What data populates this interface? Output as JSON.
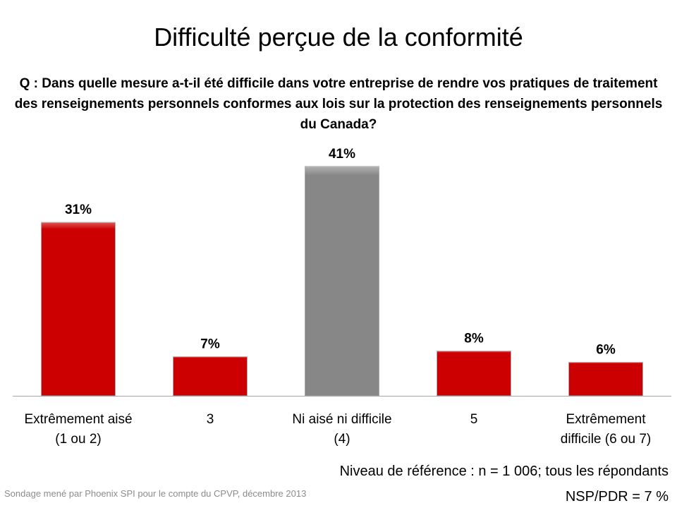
{
  "chart_data": {
    "type": "bar",
    "title": "Difficulté perçue de la conformité",
    "subtitle": "Q : Dans quelle mesure a-t-il été difficile dans votre entreprise de rendre vos pratiques de traitement des renseignements personnels conformes aux lois sur la protection des renseignements personnels du Canada?",
    "categories": [
      [
        "Extrêmement aisé",
        "(1 ou 2)"
      ],
      [
        "3"
      ],
      [
        "Ni aisé ni difficile",
        "(4)"
      ],
      [
        "5"
      ],
      [
        "Extrêmement",
        "difficile (6 ou 7)"
      ]
    ],
    "values": [
      31,
      7,
      41,
      8,
      6
    ],
    "data_labels": [
      "31%",
      "7%",
      "41%",
      "8%",
      "6%"
    ],
    "colors": [
      "#cc0000",
      "#cc0000",
      "#878787",
      "#cc0000",
      "#cc0000"
    ],
    "ylim": [
      0,
      45
    ],
    "grid": false
  },
  "notes": {
    "reference": "Niveau de référence : n = 1 006; tous les répondants",
    "nsp": "NSP/PDR = 7 %",
    "source": "Sondage mené par Phoenix SPI pour le compte du CPVP, décembre 2013"
  }
}
